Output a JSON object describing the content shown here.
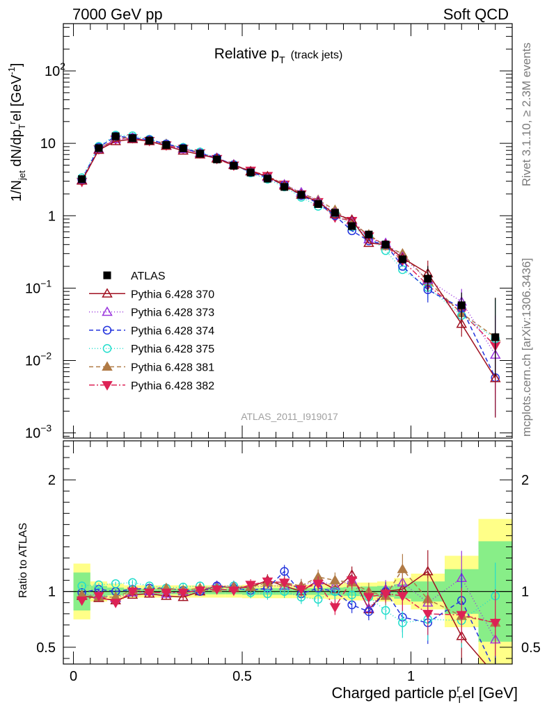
{
  "header": {
    "left": "7000 GeV pp",
    "right": "Soft QCD"
  },
  "side_text": {
    "top": "Rivet 3.1.10, ≥ 2.3M events",
    "bottom": "mcplots.cern.ch [arXiv:1306.3436]"
  },
  "analysis_tag": "ATLAS_2011_I919017",
  "chart_data": [
    {
      "type": "scatter",
      "panel": "main",
      "title": "Relative p_T (track jets)",
      "title_main": "Relative p",
      "title_sub": "T",
      "title_small": "(track jets)",
      "ylabel": "1/N_jet dN/dp_T^rel [GeV^-1]",
      "y_scale": "log",
      "ylim": [
        0.00085,
        450
      ],
      "xlim": [
        -0.03,
        1.3
      ],
      "y_ticks": [
        {
          "v": 0.001,
          "label": "10",
          "exp": "−3"
        },
        {
          "v": 0.01,
          "label": "10",
          "exp": "−2"
        },
        {
          "v": 0.1,
          "label": "10",
          "exp": "−1"
        },
        {
          "v": 1,
          "label": "1",
          "exp": ""
        },
        {
          "v": 10,
          "label": "10",
          "exp": ""
        },
        {
          "v": 100,
          "label": "10",
          "exp": "2"
        }
      ],
      "x": [
        0.025,
        0.075,
        0.125,
        0.175,
        0.225,
        0.275,
        0.325,
        0.375,
        0.425,
        0.475,
        0.525,
        0.575,
        0.625,
        0.675,
        0.725,
        0.775,
        0.825,
        0.875,
        0.925,
        0.975,
        1.05,
        1.15,
        1.25
      ],
      "series": [
        {
          "name": "ATLAS",
          "color": "#000000",
          "marker": "square-filled",
          "dash": "none",
          "line": false,
          "values": [
            3.2,
            8.6,
            12.5,
            11.8,
            10.9,
            9.5,
            8.5,
            7.2,
            6.0,
            4.9,
            3.95,
            3.25,
            2.5,
            1.95,
            1.45,
            1.1,
            0.72,
            0.55,
            0.4,
            0.25,
            0.135,
            0.058,
            0.021
          ]
        },
        {
          "name": "Pythia 6.428 370",
          "color": "#a01020",
          "marker": "triangle-open",
          "dash": "none",
          "line": true,
          "values": [
            3.05,
            8.1,
            10.7,
            11.4,
            10.7,
            9.2,
            7.9,
            7.0,
            6.2,
            5.0,
            4.1,
            3.5,
            2.6,
            1.95,
            1.55,
            1.05,
            0.88,
            0.42,
            0.4,
            0.26,
            0.16,
            0.032,
            0.0057
          ]
        },
        {
          "name": "Pythia 6.428 373",
          "color": "#9933dd",
          "marker": "triangle-open",
          "dash": "1,3",
          "line": true,
          "values": [
            3.1,
            8.3,
            11.4,
            11.6,
            10.8,
            9.3,
            8.3,
            7.3,
            6.3,
            5.1,
            4.1,
            3.4,
            2.7,
            2.1,
            1.6,
            1.1,
            0.85,
            0.47,
            0.42,
            0.27,
            0.13,
            0.065,
            0.012
          ]
        },
        {
          "name": "Pythia 6.428 374",
          "color": "#2233dd",
          "marker": "circle-open",
          "dash": "6,4",
          "line": true,
          "values": [
            3.15,
            8.8,
            12.5,
            12.0,
            11.2,
            9.8,
            8.6,
            7.3,
            6.3,
            5.05,
            4.0,
            3.35,
            2.65,
            1.9,
            1.5,
            1.0,
            0.62,
            0.45,
            0.4,
            0.2,
            0.095,
            0.053,
            0.0058
          ]
        },
        {
          "name": "Pythia 6.428 375",
          "color": "#22ddcc",
          "marker": "circle-open",
          "dash": "1,3",
          "line": true,
          "values": [
            3.35,
            9.1,
            13.0,
            12.7,
            11.4,
            9.8,
            8.8,
            7.6,
            6.2,
            5.1,
            3.9,
            3.2,
            2.5,
            1.8,
            1.35,
            1.08,
            0.7,
            0.52,
            0.33,
            0.18,
            0.102,
            0.042,
            0.02
          ]
        },
        {
          "name": "Pythia 6.428 381",
          "color": "#b07a45",
          "marker": "triangle-filled",
          "dash": "6,4",
          "line": true,
          "values": [
            3.1,
            8.2,
            11.9,
            11.9,
            11.1,
            9.8,
            8.6,
            7.4,
            6.1,
            5.1,
            4.1,
            3.5,
            2.7,
            2.05,
            1.65,
            1.2,
            0.78,
            0.55,
            0.38,
            0.3,
            0.125,
            0.045,
            0.021
          ]
        },
        {
          "name": "Pythia 6.428 382",
          "color": "#dd2255",
          "marker": "triangle-down-filled",
          "dash": "8,3,2,3",
          "line": true,
          "values": [
            2.95,
            8.3,
            11.3,
            11.8,
            10.8,
            9.4,
            8.4,
            7.3,
            6.1,
            4.95,
            4.2,
            3.55,
            2.7,
            1.98,
            1.55,
            0.95,
            0.85,
            0.52,
            0.39,
            0.24,
            0.11,
            0.046,
            0.016
          ]
        }
      ]
    },
    {
      "type": "scatter",
      "panel": "ratio",
      "xlabel": "Charged particle p_T^rel [GeV]",
      "xlabel_main": "Charged particle p",
      "xlabel_sup": "r",
      "xlabel_sub": "T",
      "xlabel_end": "el [GeV]",
      "ylabel": "Ratio to ATLAS",
      "y_scale": "linear",
      "ylim": [
        0.35,
        2.35
      ],
      "xlim": [
        -0.03,
        1.3
      ],
      "x_ticks": [
        {
          "v": 0,
          "label": "0"
        },
        {
          "v": 0.5,
          "label": "0.5"
        },
        {
          "v": 1,
          "label": "1"
        }
      ],
      "y_ticks": [
        {
          "v": 0.5,
          "label": "0.5"
        },
        {
          "v": 1,
          "label": "1"
        },
        {
          "v": 2,
          "label": "2"
        }
      ],
      "bins": [
        [
          0,
          0.05
        ],
        [
          0.05,
          0.1
        ],
        [
          0.1,
          0.15
        ],
        [
          0.15,
          0.2
        ],
        [
          0.2,
          0.25
        ],
        [
          0.25,
          0.3
        ],
        [
          0.3,
          0.35
        ],
        [
          0.35,
          0.4
        ],
        [
          0.4,
          0.45
        ],
        [
          0.45,
          0.5
        ],
        [
          0.5,
          0.55
        ],
        [
          0.55,
          0.6
        ],
        [
          0.6,
          0.65
        ],
        [
          0.65,
          0.7
        ],
        [
          0.7,
          0.75
        ],
        [
          0.75,
          0.8
        ],
        [
          0.8,
          0.85
        ],
        [
          0.85,
          0.9
        ],
        [
          0.9,
          0.95
        ],
        [
          0.95,
          1.0
        ],
        [
          1.0,
          1.1
        ],
        [
          1.1,
          1.2
        ],
        [
          1.2,
          1.3
        ]
      ],
      "band_inner": [
        0.17,
        0.05,
        0.035,
        0.025,
        0.025,
        0.025,
        0.025,
        0.025,
        0.025,
        0.025,
        0.03,
        0.03,
        0.03,
        0.03,
        0.03,
        0.035,
        0.04,
        0.045,
        0.05,
        0.065,
        0.09,
        0.2,
        0.45
      ],
      "band_outer": [
        0.25,
        0.09,
        0.07,
        0.055,
        0.055,
        0.055,
        0.055,
        0.055,
        0.055,
        0.055,
        0.06,
        0.06,
        0.06,
        0.06,
        0.065,
        0.07,
        0.08,
        0.08,
        0.09,
        0.12,
        0.16,
        0.32,
        0.65
      ],
      "series": [
        {
          "name": "Pythia 6.428 370",
          "values": [
            0.96,
            0.94,
            0.92,
            0.97,
            0.98,
            0.96,
            0.95,
            1.0,
            1.05,
            1.03,
            1.04,
            1.1,
            1.05,
            1.0,
            1.1,
            1.02,
            1.15,
            0.84,
            1.0,
            1.02,
            1.18,
            0.6,
            0.25
          ]
        },
        {
          "name": "Pythia 6.428 373",
          "values": [
            0.97,
            0.97,
            0.94,
            0.99,
            1.0,
            0.98,
            1.0,
            1.02,
            1.05,
            1.05,
            1.04,
            1.05,
            1.05,
            1.05,
            1.1,
            1.05,
            1.1,
            0.85,
            1.02,
            1.08,
            0.9,
            1.12,
            0.57
          ]
        },
        {
          "name": "Pythia 6.428 374",
          "values": [
            0.99,
            1.02,
            1.0,
            1.02,
            1.03,
            1.03,
            1.01,
            1.0,
            1.05,
            1.03,
            1.01,
            1.03,
            1.18,
            0.98,
            1.03,
            1.0,
            0.88,
            0.82,
            1.0,
            0.77,
            0.72,
            0.92,
            0.28
          ]
        },
        {
          "name": "Pythia 6.428 375",
          "values": [
            1.05,
            1.06,
            1.07,
            1.08,
            1.05,
            1.03,
            1.04,
            1.05,
            1.03,
            1.05,
            0.99,
            0.98,
            1.0,
            0.95,
            0.93,
            1.0,
            0.97,
            0.95,
            0.83,
            0.72,
            0.75,
            0.74,
            0.96
          ]
        },
        {
          "name": "Pythia 6.428 381",
          "values": [
            0.97,
            0.95,
            0.95,
            1.01,
            1.02,
            1.03,
            1.01,
            1.03,
            1.03,
            1.04,
            1.04,
            1.08,
            1.08,
            1.05,
            1.13,
            1.1,
            1.08,
            1.0,
            0.96,
            1.2,
            0.93,
            0.78,
            0.72
          ]
        },
        {
          "name": "Pythia 6.428 382",
          "values": [
            0.92,
            0.96,
            0.9,
            1.0,
            0.99,
            0.99,
            0.99,
            1.01,
            1.02,
            1.01,
            1.06,
            1.09,
            1.08,
            1.02,
            1.07,
            0.86,
            1.1,
            0.95,
            0.98,
            0.96,
            0.8,
            0.79,
            0.72
          ]
        }
      ]
    }
  ]
}
